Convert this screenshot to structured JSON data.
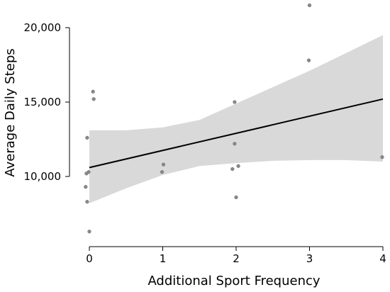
{
  "chart_data": {
    "type": "scatter",
    "title": "",
    "xlabel": "Additional Sport Frequency",
    "ylabel": "Average Daily Steps",
    "xlim": [
      0,
      4
    ],
    "ylim": [
      5000,
      22000
    ],
    "x_ticks": [
      0,
      1,
      2,
      3,
      4
    ],
    "x_tick_labels": [
      "0",
      "1",
      "2",
      "3",
      "4"
    ],
    "y_ticks": [
      10000,
      15000,
      20000
    ],
    "y_tick_labels": [
      "10,000",
      "15,000",
      "20,000"
    ],
    "grid": false,
    "legend": "none",
    "points": [
      {
        "x": -0.05,
        "y": 9300
      },
      {
        "x": -0.04,
        "y": 10200
      },
      {
        "x": -0.03,
        "y": 12600
      },
      {
        "x": -0.03,
        "y": 8300
      },
      {
        "x": -0.01,
        "y": 10300
      },
      {
        "x": 0.0,
        "y": 6300
      },
      {
        "x": 0.05,
        "y": 15700
      },
      {
        "x": 0.06,
        "y": 15200
      },
      {
        "x": 0.99,
        "y": 10300
      },
      {
        "x": 1.01,
        "y": 10800
      },
      {
        "x": 1.95,
        "y": 10500
      },
      {
        "x": 1.98,
        "y": 15000
      },
      {
        "x": 1.98,
        "y": 12200
      },
      {
        "x": 2.0,
        "y": 8600
      },
      {
        "x": 2.03,
        "y": 10700
      },
      {
        "x": 2.99,
        "y": 17800
      },
      {
        "x": 3.0,
        "y": 21500
      },
      {
        "x": 3.99,
        "y": 11300
      }
    ],
    "regression": {
      "x": [
        0,
        4
      ],
      "y": [
        10600,
        15200
      ]
    },
    "confidence_band": {
      "x": [
        0,
        0.5,
        1,
        1.5,
        2,
        2.5,
        3,
        3.5,
        4
      ],
      "upper": [
        13100,
        13100,
        13300,
        13800,
        14900,
        16000,
        17100,
        18300,
        19500
      ],
      "lower": [
        8200,
        9200,
        10100,
        10700,
        10900,
        11050,
        11100,
        11100,
        11000
      ]
    },
    "colors": {
      "point": "#888888",
      "line": "#000000",
      "band": "#d9d9d9",
      "axis": "#000000"
    }
  }
}
